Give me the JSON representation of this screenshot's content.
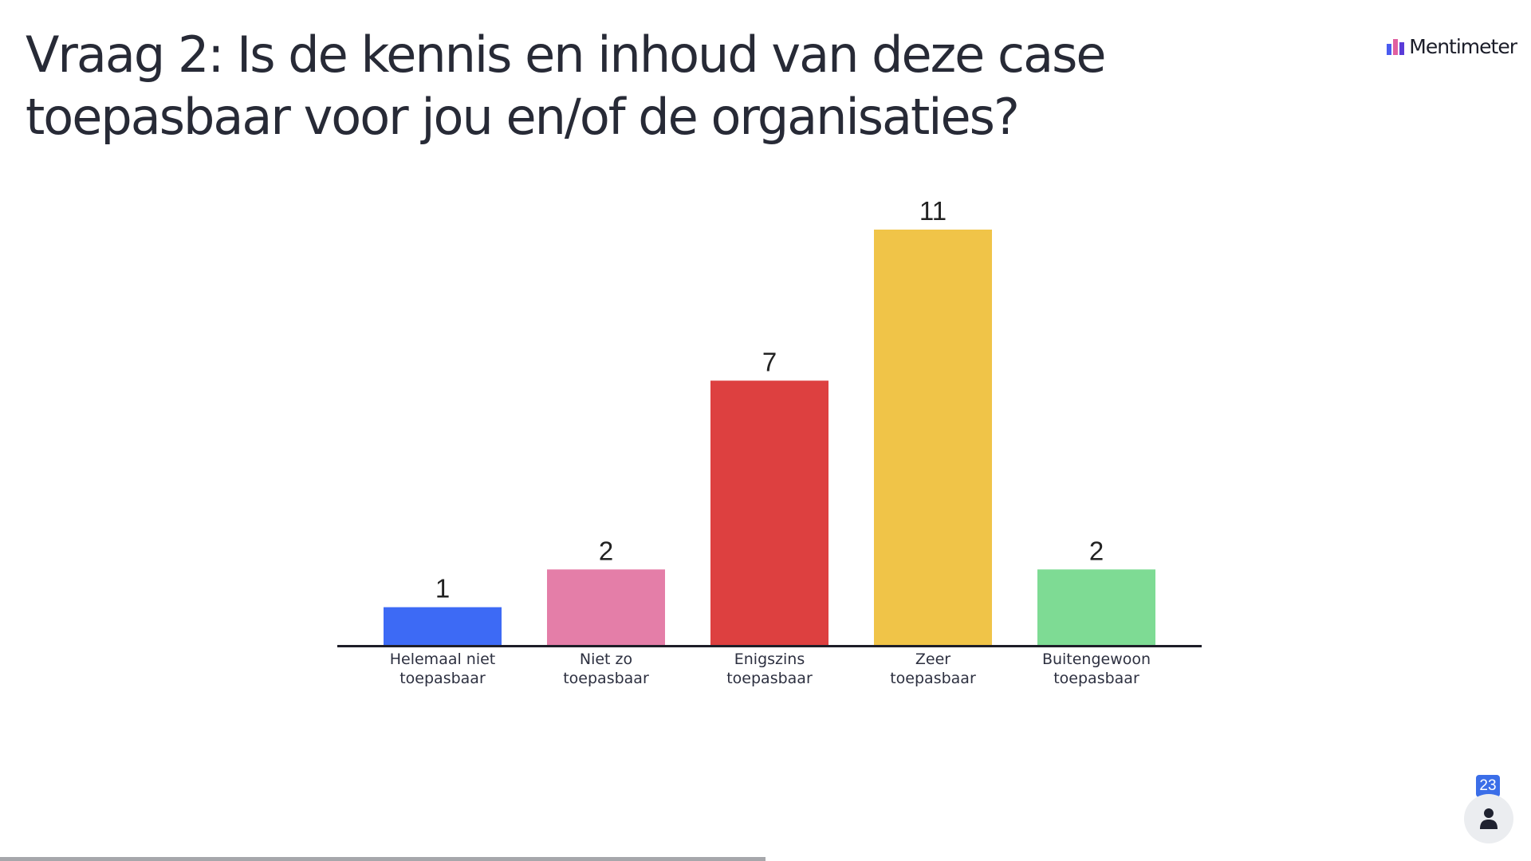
{
  "header": {
    "title": "Vraag 2: Is de kennis en inhoud van deze case toepasbaar voor jou en/of de organisaties?",
    "brand": "Mentimeter"
  },
  "chart_data": {
    "type": "bar",
    "categories": [
      [
        "Helemaal niet",
        "toepasbaar"
      ],
      [
        "Niet zo",
        "toepasbaar"
      ],
      [
        "Enigszins",
        "toepasbaar"
      ],
      [
        "Zeer",
        "toepasbaar"
      ],
      [
        "Buitengewoon",
        "toepasbaar"
      ]
    ],
    "values": [
      1,
      2,
      7,
      11,
      2
    ],
    "colors": [
      "#3d6af5",
      "#e47ea8",
      "#dd4040",
      "#f0c448",
      "#7edb94"
    ],
    "title": "",
    "xlabel": "",
    "ylabel": "",
    "ylim": [
      0,
      11
    ],
    "grid": false
  },
  "participants": {
    "count": "23",
    "icon": "person-icon"
  },
  "progress": {
    "fraction": 0.5
  }
}
